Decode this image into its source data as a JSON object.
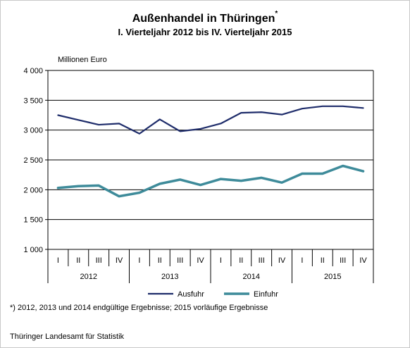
{
  "title": "Außenhandel in Thüringen",
  "title_mark": "*",
  "subtitle": "I. Vierteljahr 2012 bis IV. Vierteljahr 2015",
  "footnote": "*) 2012, 2013 und 2014 endgültige Ergebnisse; 2015 vorläufige Ergebnisse",
  "source": "Thüringer Landesamt für Statistik",
  "chart_data": {
    "type": "line",
    "ylabel": "Millionen Euro",
    "ylim": [
      1000,
      4000
    ],
    "yticks": [
      1000,
      1500,
      2000,
      2500,
      3000,
      3500,
      4000
    ],
    "ytick_labels": [
      "1 000",
      "1 500",
      "2 000",
      "2 500",
      "3 000",
      "3 500",
      "4 000"
    ],
    "grid": true,
    "legend_position": "bottom",
    "quarters": [
      "I",
      "II",
      "III",
      "IV"
    ],
    "years": [
      "2012",
      "2013",
      "2014",
      "2015"
    ],
    "series": [
      {
        "name": "Ausfuhr",
        "color": "#1f2d6b",
        "values": [
          3250,
          3170,
          3090,
          3110,
          2940,
          3180,
          2980,
          3020,
          3110,
          3290,
          3300,
          3260,
          3360,
          3400,
          3400,
          3370
        ]
      },
      {
        "name": "Einfuhr",
        "color": "#3e8b9a",
        "values": [
          2030,
          2060,
          2070,
          1890,
          1950,
          2100,
          2170,
          2080,
          2180,
          2150,
          2200,
          2120,
          2270,
          2270,
          2400,
          2310
        ]
      }
    ]
  }
}
